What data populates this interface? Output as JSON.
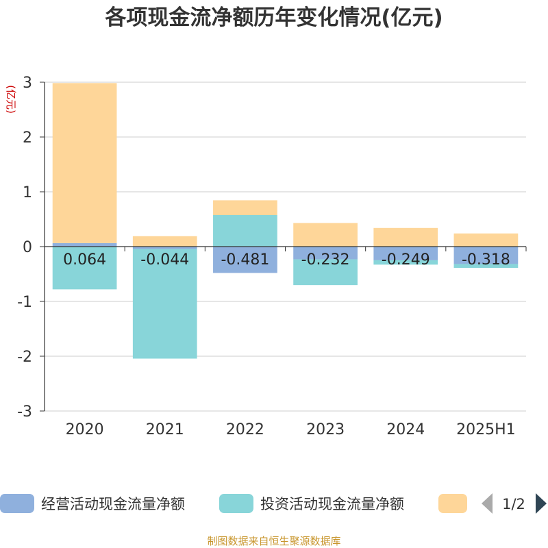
{
  "chart_data": {
    "type": "bar",
    "stacked": true,
    "title": "各项现金流净额历年变化情况(亿元)",
    "ylabel": "(亿元)",
    "xlabel": "",
    "categories": [
      "2020",
      "2021",
      "2022",
      "2023",
      "2024",
      "2025H1"
    ],
    "ylim": [
      -3,
      3
    ],
    "yticks": [
      3,
      2,
      1,
      0,
      -1,
      -2,
      -3
    ],
    "grid": true,
    "series": [
      {
        "name": "经营活动现金流量净额",
        "color": "#8fb0dd",
        "values": [
          0.064,
          -0.044,
          -0.481,
          -0.232,
          -0.249,
          -0.318
        ],
        "labels": [
          "0.064",
          "-0.044",
          "-0.481",
          "-0.232",
          "-0.249",
          "-0.318"
        ]
      },
      {
        "name": "投资活动现金流量净额",
        "color": "#88d5d9",
        "values": [
          -0.78,
          -2.0,
          0.575,
          -0.47,
          -0.08,
          -0.07
        ]
      },
      {
        "name": "",
        "color": "#fed699",
        "values": [
          2.92,
          0.19,
          0.27,
          0.43,
          0.34,
          0.24
        ]
      }
    ],
    "legend": {
      "placement": "bottom",
      "page": "1/2"
    }
  },
  "source_note": "制图数据来自恒生聚源数据库"
}
